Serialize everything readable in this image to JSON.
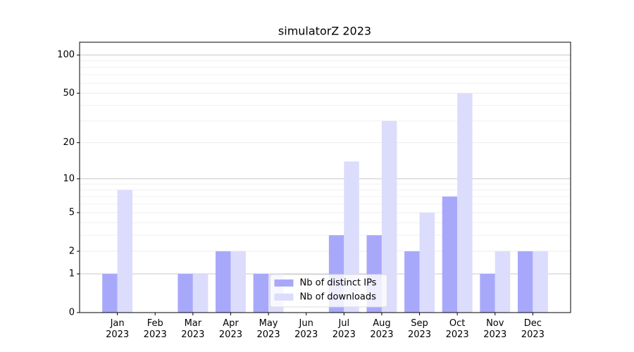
{
  "chart_data": {
    "type": "bar",
    "title": "simulatorZ 2023",
    "categories": [
      "Jan\n2023",
      "Feb\n2023",
      "Mar\n2023",
      "Apr\n2023",
      "May\n2023",
      "Jun\n2023",
      "Jul\n2023",
      "Aug\n2023",
      "Sep\n2023",
      "Oct\n2023",
      "Nov\n2023",
      "Dec\n2023"
    ],
    "series": [
      {
        "name": "Nb of distinct IPs",
        "color": "#a8a8fb",
        "values": [
          1,
          0,
          1,
          2,
          1,
          0,
          3,
          3,
          2,
          7,
          1,
          2
        ]
      },
      {
        "name": "Nb of downloads",
        "color": "#dcdcfd",
        "values": [
          8,
          0,
          1,
          2,
          1,
          0,
          14,
          30,
          5,
          50,
          2,
          2
        ]
      }
    ],
    "yscale": "log1p",
    "ylim": [
      0,
      126
    ],
    "yticks": [
      0,
      1,
      2,
      5,
      10,
      20,
      50,
      100
    ],
    "yminorticks": [
      3,
      4,
      6,
      7,
      8,
      9,
      30,
      40,
      60,
      70,
      80,
      90
    ],
    "grid": true,
    "legend": "lower center"
  }
}
